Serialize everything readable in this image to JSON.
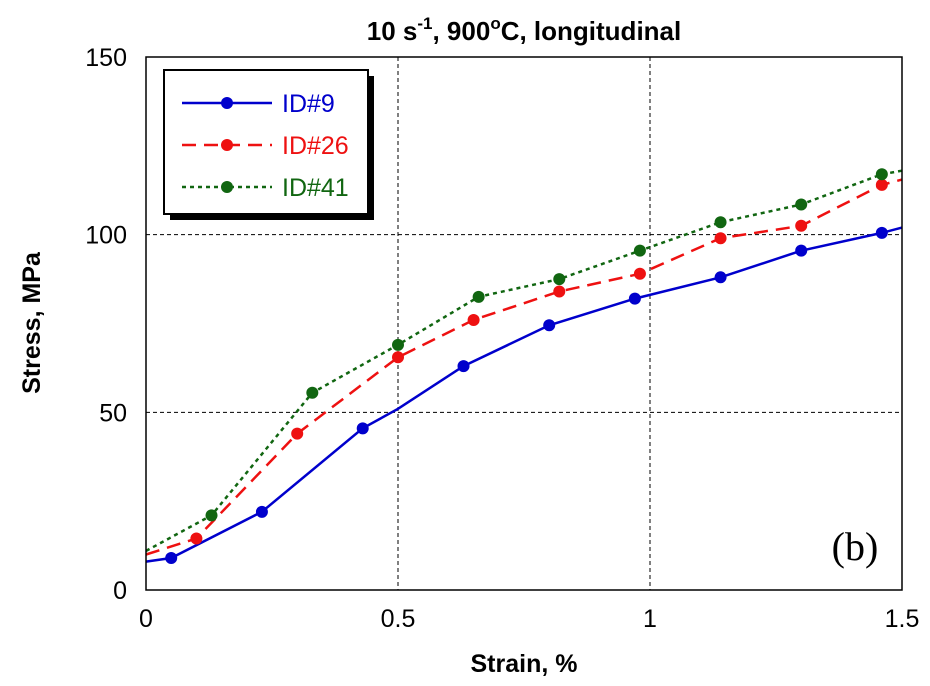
{
  "chart_data": {
    "type": "line",
    "title": {
      "prefix": "10 s",
      "prefix_sup": "-1",
      "middle": ", 900",
      "middle_sup": "o",
      "suffix": "C, longitudinal"
    },
    "xlabel": "Strain, %",
    "ylabel": "Stress, MPa",
    "xlim": [
      0,
      1.5
    ],
    "ylim": [
      0,
      150
    ],
    "x_ticks": [
      "0",
      "0.5",
      "1",
      "1.5"
    ],
    "y_ticks": [
      "0",
      "50",
      "100",
      "150"
    ],
    "grid": true,
    "legend_position": "top-left",
    "annotation": "(b)",
    "series": [
      {
        "name": "ID#9",
        "color": "#0000cc",
        "style": "solid",
        "line": [
          [
            0,
            8
          ],
          [
            0.05,
            9
          ],
          [
            0.23,
            22
          ],
          [
            0.43,
            45.5
          ],
          [
            0.5,
            51
          ],
          [
            0.63,
            63
          ],
          [
            0.8,
            74.5
          ],
          [
            0.97,
            82
          ],
          [
            1.14,
            88
          ],
          [
            1.3,
            95.5
          ],
          [
            1.46,
            100.5
          ],
          [
            1.5,
            102
          ]
        ],
        "markers": [
          [
            0.05,
            9
          ],
          [
            0.23,
            22
          ],
          [
            0.43,
            45.5
          ],
          [
            0.63,
            63
          ],
          [
            0.8,
            74.5
          ],
          [
            0.97,
            82
          ],
          [
            1.14,
            88
          ],
          [
            1.3,
            95.5
          ],
          [
            1.46,
            100.5
          ]
        ]
      },
      {
        "name": "ID#26",
        "color": "#ee1111",
        "style": "dashed",
        "line": [
          [
            0,
            10
          ],
          [
            0.1,
            14.5
          ],
          [
            0.3,
            44
          ],
          [
            0.5,
            65.5
          ],
          [
            0.65,
            76
          ],
          [
            0.82,
            84
          ],
          [
            0.98,
            89
          ],
          [
            1.14,
            99
          ],
          [
            1.3,
            102.5
          ],
          [
            1.46,
            114
          ],
          [
            1.5,
            115.5
          ]
        ],
        "markers": [
          [
            0.1,
            14.5
          ],
          [
            0.3,
            44
          ],
          [
            0.5,
            65.5
          ],
          [
            0.65,
            76
          ],
          [
            0.82,
            84
          ],
          [
            0.98,
            89
          ],
          [
            1.14,
            99
          ],
          [
            1.3,
            102.5
          ],
          [
            1.46,
            114
          ]
        ]
      },
      {
        "name": "ID#41",
        "color": "#116611",
        "style": "dotted",
        "line": [
          [
            0,
            11
          ],
          [
            0.13,
            21
          ],
          [
            0.33,
            55.5
          ],
          [
            0.5,
            69
          ],
          [
            0.66,
            82.5
          ],
          [
            0.82,
            87.5
          ],
          [
            0.98,
            95.5
          ],
          [
            1.14,
            103.5
          ],
          [
            1.3,
            108.5
          ],
          [
            1.46,
            117
          ],
          [
            1.5,
            118
          ]
        ],
        "markers": [
          [
            0.13,
            21
          ],
          [
            0.33,
            55.5
          ],
          [
            0.5,
            69
          ],
          [
            0.66,
            82.5
          ],
          [
            0.82,
            87.5
          ],
          [
            0.98,
            95.5
          ],
          [
            1.14,
            103.5
          ],
          [
            1.3,
            108.5
          ],
          [
            1.46,
            117
          ]
        ]
      }
    ]
  }
}
